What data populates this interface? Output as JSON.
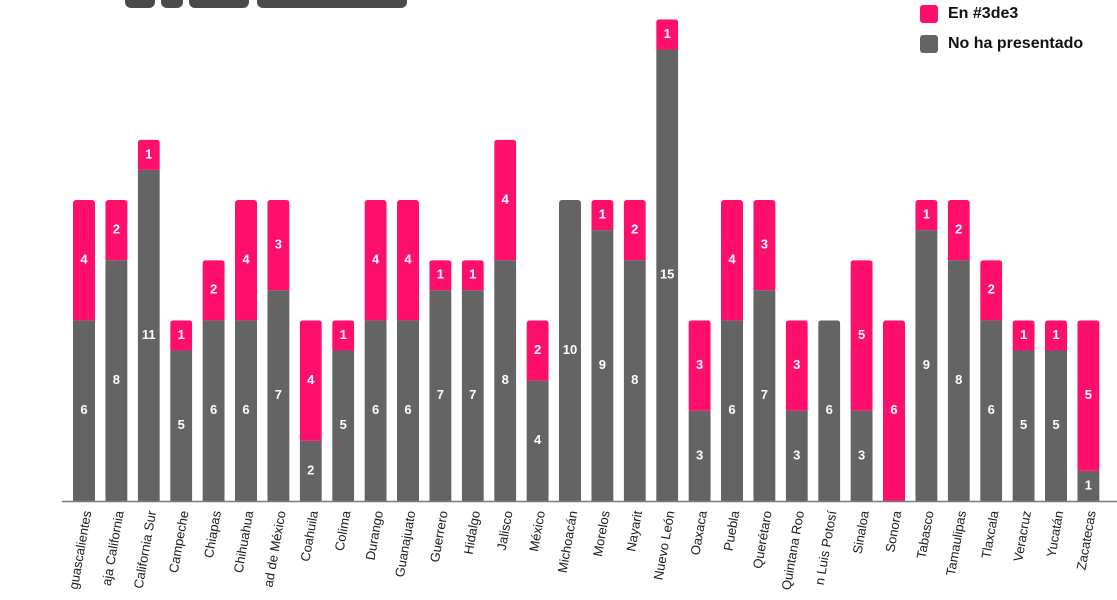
{
  "colors": {
    "declared": "#ff0f6c",
    "pending": "#646464",
    "axis": "#7a7a7a",
    "text_on_bar": "#ffffff",
    "tick_text": "#1a1a1a"
  },
  "legend": [
    {
      "label": "En #3de3",
      "color": "#ff0f6c"
    },
    {
      "label": "No ha presentado",
      "color": "#646464"
    }
  ],
  "chart_data": {
    "type": "bar",
    "stacked": true,
    "title": "",
    "xlabel": "",
    "ylabel": "",
    "ylim": [
      0,
      16
    ],
    "grid": false,
    "legend_position": "top-right",
    "categories": [
      "Aguascalientes",
      "Baja California",
      "Baja California Sur",
      "Campeche",
      "Chiapas",
      "Chihuahua",
      "Ciudad de México",
      "Coahuila",
      "Colima",
      "Durango",
      "Guanajuato",
      "Guerrero",
      "Hidalgo",
      "Jalisco",
      "México",
      "Michoacán",
      "Morelos",
      "Nayarit",
      "Nuevo León",
      "Oaxaca",
      "Puebla",
      "Querétaro",
      "Quintana Roo",
      "San Luis Potosí",
      "Sinaloa",
      "Sonora",
      "Tabasco",
      "Tamaulipas",
      "Tlaxcala",
      "Veracruz",
      "Yucatán",
      "Zacatecas"
    ],
    "tick_labels_visible": [
      "guascalientes",
      "aja California",
      "California Sur",
      "Campeche",
      "Chiapas",
      "Chihuahua",
      "ad de México",
      "Coahuila",
      "Colima",
      "Durango",
      "Guanajuato",
      "Guerrero",
      "Hidalgo",
      "Jalisco",
      "México",
      "Michoacán",
      "Morelos",
      "Nayarit",
      "Nuevo León",
      "Oaxaca",
      "Puebla",
      "Querétaro",
      "Quintana Roo",
      "n Luis Potosí",
      "Sinaloa",
      "Sonora",
      "Tabasco",
      "Tamaulipas",
      "Tlaxcala",
      "Veracruz",
      "Yucatán",
      "Zacatecas"
    ],
    "series": [
      {
        "name": "No ha presentado",
        "values": [
          6,
          8,
          11,
          5,
          6,
          6,
          7,
          2,
          5,
          6,
          6,
          7,
          7,
          8,
          4,
          10,
          9,
          8,
          15,
          3,
          6,
          7,
          3,
          6,
          3,
          0,
          9,
          8,
          6,
          5,
          5,
          1
        ]
      },
      {
        "name": "En #3de3",
        "values": [
          4,
          2,
          1,
          1,
          2,
          4,
          3,
          4,
          1,
          4,
          4,
          1,
          1,
          4,
          2,
          0,
          1,
          2,
          1,
          3,
          4,
          3,
          3,
          0,
          5,
          6,
          1,
          2,
          2,
          1,
          1,
          5
        ]
      }
    ]
  }
}
